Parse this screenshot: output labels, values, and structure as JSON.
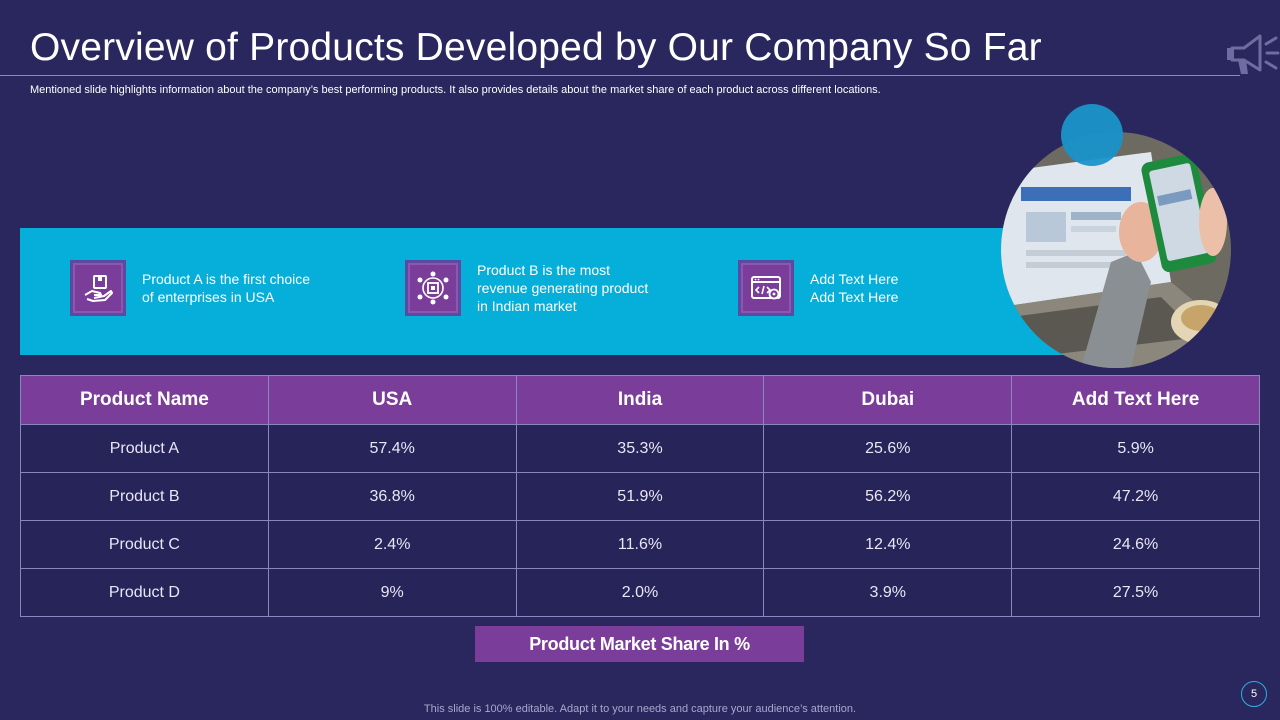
{
  "slide": {
    "title": "Overview of Products Developed by Our Company So Far",
    "subtitle": "Mentioned slide highlights information about the company’s best performing products. It also provides details about the market share of each product across different locations.",
    "footer": "This slide is 100% editable. Adapt it to your needs and capture your audience’s attention.",
    "page_number": "5"
  },
  "features": [
    {
      "icon": "hand-box-icon",
      "text": "Product A is the first choice\nof enterprises in USA"
    },
    {
      "icon": "network-chip-icon",
      "text": "Product B is the most\nrevenue generating product\nin Indian market"
    },
    {
      "icon": "browser-code-gear-icon",
      "text": "Add Text Here\nAdd Text Here"
    }
  ],
  "table": {
    "headers": [
      "Product Name",
      "USA",
      "India",
      "Dubai",
      "Add Text Here"
    ],
    "rows": [
      [
        "Product A",
        "57.4%",
        "35.3%",
        "25.6%",
        "5.9%"
      ],
      [
        "Product B",
        "36.8%",
        "51.9%",
        "56.2%",
        "47.2%"
      ],
      [
        "Product C",
        "2.4%",
        "11.6%",
        "12.4%",
        "24.6%"
      ],
      [
        "Product D",
        "9%",
        "2.0%",
        "3.9%",
        "27.5%"
      ]
    ]
  },
  "caption": "Product Market Share In %",
  "colors": {
    "background": "#2a275e",
    "band": "#05afd9",
    "accent_purple": "#7a3d9a",
    "border": "#8a87c0"
  }
}
